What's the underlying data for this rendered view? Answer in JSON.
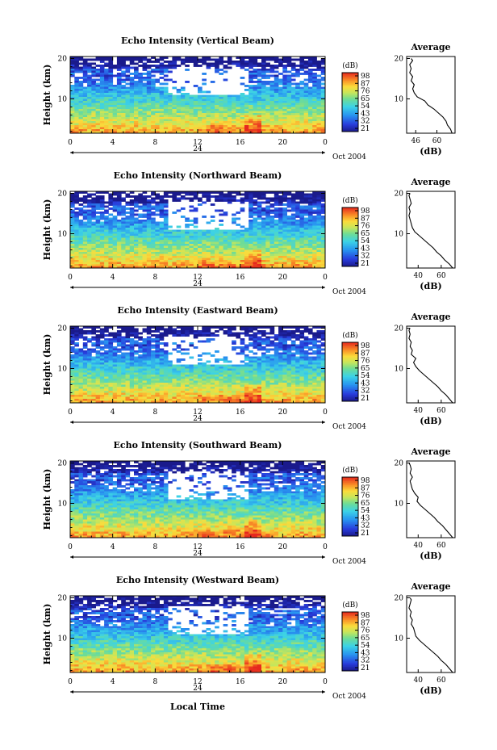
{
  "figure": {
    "xlabel": "Local Time",
    "date_label": "Oct 2004",
    "day_label": "24"
  },
  "chart_data": [
    {
      "type": "heatmap",
      "title": "Echo Intensity (Vertical Beam)",
      "ylabel": "Height (km)",
      "x_ticks": [
        "0",
        "4",
        "8",
        "12",
        "16",
        "20",
        "0"
      ],
      "y_ticks": [
        "10",
        "20"
      ],
      "xlim": [
        0,
        24
      ],
      "ylim": [
        1.5,
        20.5
      ],
      "colorbar": {
        "label": "(dB)",
        "ticks": [
          "98",
          "87",
          "76",
          "65",
          "54",
          "43",
          "32",
          "21"
        ]
      },
      "profile": {
        "title": "Average",
        "xlabel": "(dB)",
        "x_ticks": [
          "46",
          "60"
        ],
        "y_ticks": [
          "10",
          "20"
        ],
        "xlim": [
          40,
          72
        ],
        "points": [
          [
            70,
            1.5
          ],
          [
            69,
            2.5
          ],
          [
            67,
            3.5
          ],
          [
            66,
            4.5
          ],
          [
            64,
            5.5
          ],
          [
            61,
            6.5
          ],
          [
            58,
            7.5
          ],
          [
            54,
            8.5
          ],
          [
            52,
            9.5
          ],
          [
            47,
            10.5
          ],
          [
            45,
            11.5
          ],
          [
            44,
            12.5
          ],
          [
            45,
            13.5
          ],
          [
            43,
            14.5
          ],
          [
            44,
            15.5
          ],
          [
            42,
            16.5
          ],
          [
            43,
            17.5
          ],
          [
            42,
            18.5
          ],
          [
            44,
            19.5
          ],
          [
            43,
            20
          ]
        ]
      }
    },
    {
      "type": "heatmap",
      "title": "Echo Intensity (Northward Beam)",
      "ylabel": "Height (km)",
      "x_ticks": [
        "0",
        "4",
        "8",
        "12",
        "16",
        "20",
        "0"
      ],
      "y_ticks": [
        "10",
        "20"
      ],
      "xlim": [
        0,
        24
      ],
      "ylim": [
        1.5,
        20.5
      ],
      "colorbar": {
        "label": "(dB)",
        "ticks": [
          "98",
          "87",
          "76",
          "65",
          "54",
          "43",
          "32",
          "21"
        ]
      },
      "profile": {
        "title": "Average",
        "xlabel": "(dB)",
        "x_ticks": [
          "40",
          "60"
        ],
        "y_ticks": [
          "10",
          "20"
        ],
        "xlim": [
          30,
          72
        ],
        "points": [
          [
            70,
            1.5
          ],
          [
            67,
            2.5
          ],
          [
            63,
            3.5
          ],
          [
            60,
            4.5
          ],
          [
            56,
            5.5
          ],
          [
            53,
            6.5
          ],
          [
            49,
            7.5
          ],
          [
            45,
            8.5
          ],
          [
            41,
            9.5
          ],
          [
            37,
            10.5
          ],
          [
            35,
            11.5
          ],
          [
            34,
            12.5
          ],
          [
            33,
            13.5
          ],
          [
            32,
            14.5
          ],
          [
            33,
            15.5
          ],
          [
            32,
            16.5
          ],
          [
            34,
            17.5
          ],
          [
            33,
            18.5
          ],
          [
            32,
            19.5
          ],
          [
            33,
            20
          ]
        ]
      }
    },
    {
      "type": "heatmap",
      "title": "Echo Intensity (Eastward Beam)",
      "ylabel": "Height (km)",
      "x_ticks": [
        "0",
        "4",
        "8",
        "12",
        "16",
        "20",
        "0"
      ],
      "y_ticks": [
        "10",
        "20"
      ],
      "xlim": [
        0,
        24
      ],
      "ylim": [
        1.5,
        20.5
      ],
      "colorbar": {
        "label": "(dB)",
        "ticks": [
          "98",
          "87",
          "76",
          "65",
          "54",
          "43",
          "32",
          "21"
        ]
      },
      "profile": {
        "title": "Average",
        "xlabel": "(dB)",
        "x_ticks": [
          "40",
          "60"
        ],
        "y_ticks": [
          "10",
          "20"
        ],
        "xlim": [
          30,
          72
        ],
        "points": [
          [
            70,
            1.5
          ],
          [
            67,
            2.5
          ],
          [
            64,
            3.5
          ],
          [
            60,
            4.5
          ],
          [
            57,
            5.5
          ],
          [
            53,
            6.5
          ],
          [
            49,
            7.5
          ],
          [
            45,
            8.5
          ],
          [
            41,
            9.5
          ],
          [
            38,
            10.5
          ],
          [
            36,
            11.5
          ],
          [
            38,
            12.5
          ],
          [
            34,
            13.5
          ],
          [
            35,
            14.5
          ],
          [
            33,
            15.5
          ],
          [
            34,
            16.5
          ],
          [
            32,
            17.5
          ],
          [
            33,
            18.5
          ],
          [
            32,
            19.5
          ],
          [
            33,
            20
          ]
        ]
      }
    },
    {
      "type": "heatmap",
      "title": "Echo Intensity (Southward Beam)",
      "ylabel": "Height (km)",
      "x_ticks": [
        "0",
        "4",
        "8",
        "12",
        "16",
        "20",
        "0"
      ],
      "y_ticks": [
        "10",
        "20"
      ],
      "xlim": [
        0,
        24
      ],
      "ylim": [
        1.5,
        20.5
      ],
      "colorbar": {
        "label": "(dB)",
        "ticks": [
          "98",
          "87",
          "76",
          "65",
          "54",
          "43",
          "32",
          "21"
        ]
      },
      "profile": {
        "title": "Average",
        "xlabel": "(dB)",
        "x_ticks": [
          "40",
          "60"
        ],
        "y_ticks": [
          "10",
          "20"
        ],
        "xlim": [
          30,
          72
        ],
        "points": [
          [
            70,
            1.5
          ],
          [
            67,
            2.5
          ],
          [
            64,
            3.5
          ],
          [
            61,
            4.5
          ],
          [
            57,
            5.5
          ],
          [
            54,
            6.5
          ],
          [
            50,
            7.5
          ],
          [
            46,
            8.5
          ],
          [
            42,
            9.5
          ],
          [
            39,
            10.5
          ],
          [
            40,
            11.5
          ],
          [
            37,
            12.5
          ],
          [
            35,
            13.5
          ],
          [
            34,
            14.5
          ],
          [
            33,
            15.5
          ],
          [
            35,
            16.5
          ],
          [
            33,
            17.5
          ],
          [
            34,
            18.5
          ],
          [
            33,
            19.5
          ],
          [
            32,
            20
          ]
        ]
      }
    },
    {
      "type": "heatmap",
      "title": "Echo Intensity (Westward Beam)",
      "ylabel": "Height (km)",
      "x_ticks": [
        "0",
        "4",
        "8",
        "12",
        "16",
        "20",
        "0"
      ],
      "y_ticks": [
        "10",
        "20"
      ],
      "xlim": [
        0,
        24
      ],
      "ylim": [
        1.5,
        20.5
      ],
      "colorbar": {
        "label": "(dB)",
        "ticks": [
          "98",
          "87",
          "76",
          "65",
          "54",
          "43",
          "32",
          "21"
        ]
      },
      "profile": {
        "title": "Average",
        "xlabel": "(dB)",
        "x_ticks": [
          "40",
          "60"
        ],
        "y_ticks": [
          "10",
          "20"
        ],
        "xlim": [
          30,
          72
        ],
        "points": [
          [
            70,
            1.5
          ],
          [
            67,
            2.5
          ],
          [
            64,
            3.5
          ],
          [
            60,
            4.5
          ],
          [
            57,
            5.5
          ],
          [
            53,
            6.5
          ],
          [
            49,
            7.5
          ],
          [
            45,
            8.5
          ],
          [
            41,
            9.5
          ],
          [
            38,
            10.5
          ],
          [
            37,
            11.5
          ],
          [
            36,
            12.5
          ],
          [
            34,
            13.5
          ],
          [
            35,
            14.5
          ],
          [
            33,
            15.5
          ],
          [
            34,
            16.5
          ],
          [
            32,
            17.5
          ],
          [
            33,
            18.5
          ],
          [
            34,
            19.5
          ],
          [
            33,
            20
          ]
        ]
      }
    }
  ]
}
